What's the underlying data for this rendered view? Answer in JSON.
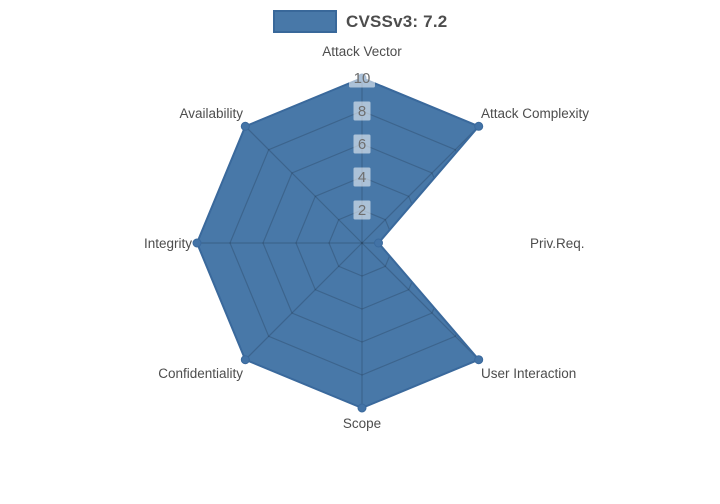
{
  "legend": {
    "label": "CVSSv3: 7.2",
    "swatch_color": "#4878A8",
    "swatch_border_color": "#39689A"
  },
  "chart_data": {
    "type": "radar",
    "title": "",
    "categories": [
      "Attack Vector",
      "Attack Complexity",
      "Priv.Req.",
      "User Interaction",
      "Scope",
      "Confidentiality",
      "Integrity",
      "Availability"
    ],
    "series": [
      {
        "name": "CVSSv3: 7.2",
        "values": [
          10,
          10,
          1,
          10,
          10,
          10,
          10,
          10
        ]
      }
    ],
    "radial_ticks": [
      2,
      4,
      6,
      8,
      10
    ],
    "range": [
      0,
      10
    ],
    "grid": true,
    "legend_position": "top",
    "colors": {
      "fill": "#4878A8",
      "line": "#3A699C",
      "marker": "#4373A6",
      "grid": "rgba(0,0,0,0.16)",
      "tick_label": "#6E6E6E",
      "tick_label_bg": "rgba(255,255,255,0.55)",
      "axis_label": "#4D4D4D"
    }
  }
}
